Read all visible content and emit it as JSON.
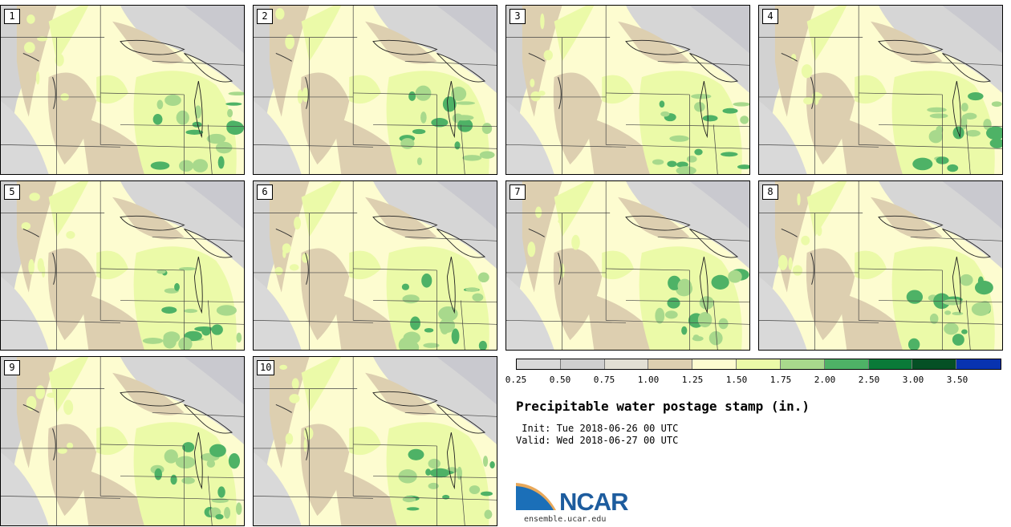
{
  "panels": [
    {
      "label": "1"
    },
    {
      "label": "2"
    },
    {
      "label": "3"
    },
    {
      "label": "4"
    },
    {
      "label": "5"
    },
    {
      "label": "6"
    },
    {
      "label": "7"
    },
    {
      "label": "8"
    },
    {
      "label": "9"
    },
    {
      "label": "10"
    }
  ],
  "legend": {
    "ticks": [
      "0.25",
      "0.50",
      "0.75",
      "1.00",
      "1.25",
      "1.50",
      "1.75",
      "2.00",
      "2.50",
      "3.00",
      "3.50"
    ],
    "colors": [
      "#d9d9d9",
      "#cfcfcf",
      "#e2dfd4",
      "#ddcfb0",
      "#fdfcd0",
      "#ebfaa8",
      "#a8d98c",
      "#4eb266",
      "#0a7a38",
      "#055025",
      "#0833b0"
    ]
  },
  "title": "Precipitable water postage stamp (in.)",
  "init": " Init: Tue 2018-06-26 00 UTC",
  "valid": "Valid: Wed 2018-06-27 00 UTC",
  "logo": {
    "text": "NCAR",
    "url": "ensemble.ucar.edu"
  }
}
